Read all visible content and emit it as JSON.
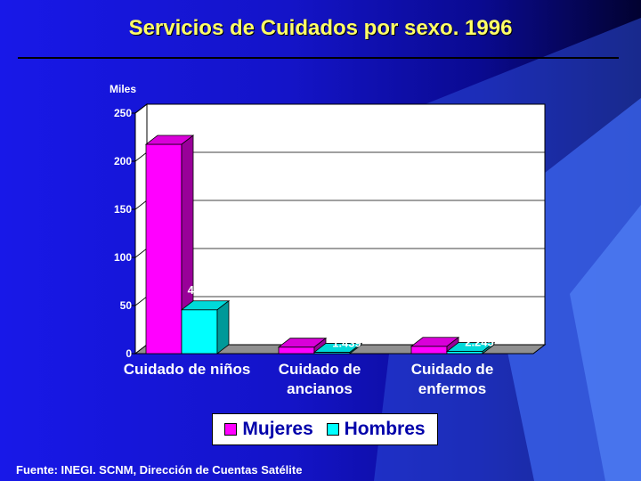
{
  "slide": {
    "title": "Servicios de Cuidados por sexo. 1996",
    "source": "Fuente: INEGI. SCNM, Dirección de Cuentas Satélite"
  },
  "colors": {
    "mujeres": "#ff00ff",
    "hombres": "#00ffff",
    "title": "#ffff66",
    "labels": "#ffffff"
  },
  "chart_data": {
    "type": "bar",
    "title": "",
    "ylabel": "Miles",
    "xlabel": "",
    "ylim": [
      0,
      250
    ],
    "yticks": [
      0,
      50,
      100,
      150,
      200,
      250
    ],
    "categories": [
      [
        "Cuidado de niños"
      ],
      [
        "Cuidado de",
        "ancianos"
      ],
      [
        "Cuidado de",
        "enfermos"
      ]
    ],
    "series": [
      {
        "name": "Mujeres",
        "values": [
          217.571,
          6.778,
          7.62
        ],
        "labels": [
          "217.571",
          "6.778",
          "7.62"
        ]
      },
      {
        "name": "Hombres",
        "values": [
          45.597,
          1.439,
          2.245
        ],
        "labels": [
          "45.597",
          "1.439",
          "2.245"
        ]
      }
    ],
    "grid": true,
    "legend": "bottom",
    "style": "3d"
  }
}
